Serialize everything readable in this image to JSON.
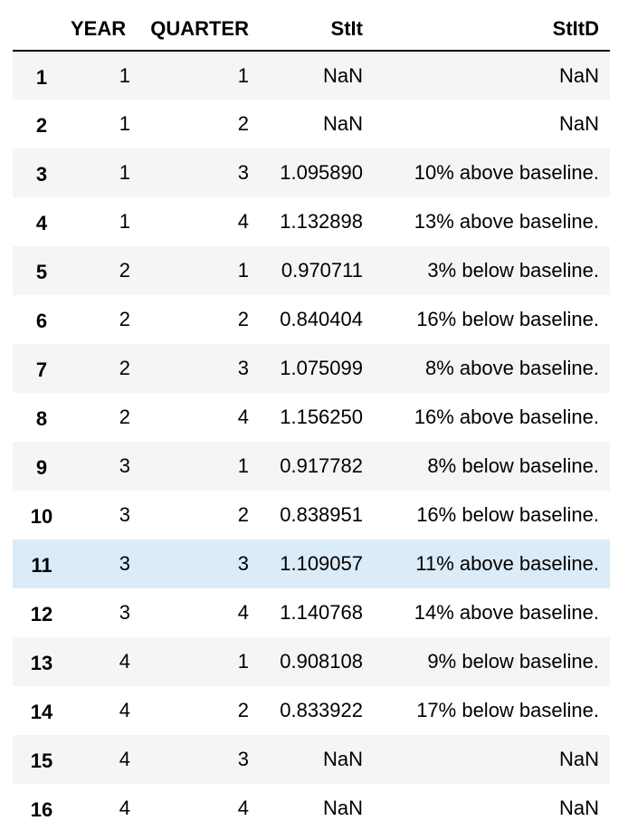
{
  "table": {
    "columns": [
      "",
      "YEAR",
      "QUARTER",
      "StIt",
      "StItD"
    ],
    "hover_row_index": 10,
    "rows": [
      {
        "idx": "1",
        "year": "1",
        "quarter": "1",
        "stit": "NaN",
        "stitd": "NaN"
      },
      {
        "idx": "2",
        "year": "1",
        "quarter": "2",
        "stit": "NaN",
        "stitd": "NaN"
      },
      {
        "idx": "3",
        "year": "1",
        "quarter": "3",
        "stit": "1.095890",
        "stitd": "10% above baseline."
      },
      {
        "idx": "4",
        "year": "1",
        "quarter": "4",
        "stit": "1.132898",
        "stitd": "13% above baseline."
      },
      {
        "idx": "5",
        "year": "2",
        "quarter": "1",
        "stit": "0.970711",
        "stitd": "3% below baseline."
      },
      {
        "idx": "6",
        "year": "2",
        "quarter": "2",
        "stit": "0.840404",
        "stitd": "16% below baseline."
      },
      {
        "idx": "7",
        "year": "2",
        "quarter": "3",
        "stit": "1.075099",
        "stitd": "8% above baseline."
      },
      {
        "idx": "8",
        "year": "2",
        "quarter": "4",
        "stit": "1.156250",
        "stitd": "16% above baseline."
      },
      {
        "idx": "9",
        "year": "3",
        "quarter": "1",
        "stit": "0.917782",
        "stitd": "8% below baseline."
      },
      {
        "idx": "10",
        "year": "3",
        "quarter": "2",
        "stit": "0.838951",
        "stitd": "16% below baseline."
      },
      {
        "idx": "11",
        "year": "3",
        "quarter": "3",
        "stit": "1.109057",
        "stitd": "11% above baseline."
      },
      {
        "idx": "12",
        "year": "3",
        "quarter": "4",
        "stit": "1.140768",
        "stitd": "14% above baseline."
      },
      {
        "idx": "13",
        "year": "4",
        "quarter": "1",
        "stit": "0.908108",
        "stitd": "9% below baseline."
      },
      {
        "idx": "14",
        "year": "4",
        "quarter": "2",
        "stit": "0.833922",
        "stitd": "17% below baseline."
      },
      {
        "idx": "15",
        "year": "4",
        "quarter": "3",
        "stit": "NaN",
        "stitd": "NaN"
      },
      {
        "idx": "16",
        "year": "4",
        "quarter": "4",
        "stit": "NaN",
        "stitd": "NaN"
      }
    ]
  },
  "colors": {
    "row_striped": "#f5f5f5",
    "row_plain": "#ffffff",
    "row_hover": "#dcebf8",
    "header_rule": "#000000"
  }
}
